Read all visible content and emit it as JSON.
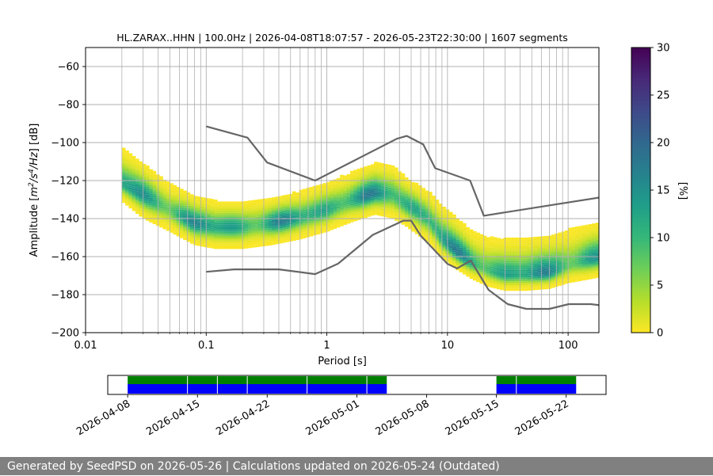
{
  "chart_data": [
    {
      "type": "heatmap",
      "title": "HL.ZARAX..HHN | 100.0Hz | 2026-04-08T18:07:57 - 2026-05-23T22:30:00 | 1607 segments",
      "xlabel": "Period [s]",
      "ylabel_parts": [
        "Amplitude [",
        "m",
        "2",
        "/",
        "s",
        "4",
        "/",
        "Hz",
        "] [dB]"
      ],
      "x_scale": "log",
      "xlim": [
        0.01,
        180
      ],
      "ylim": [
        -200,
        -50
      ],
      "xticks": [
        0.01,
        0.1,
        1,
        10,
        100
      ],
      "xtick_labels": [
        "0.01",
        "0.1",
        "1",
        "10",
        "100"
      ],
      "yticks": [
        -200,
        -180,
        -160,
        -140,
        -120,
        -100,
        -80,
        -60
      ],
      "ytick_labels": [
        "−200",
        "−180",
        "−160",
        "−140",
        "−120",
        "−100",
        "−80",
        "−60"
      ],
      "grid": true,
      "colorbar": {
        "label": "[%]",
        "range": [
          0,
          30
        ],
        "ticks": [
          0,
          5,
          10,
          15,
          20,
          25,
          30
        ],
        "colormap": "viridis_r",
        "colors": [
          "#fde725",
          "#b5de2b",
          "#6ece58",
          "#35b779",
          "#1f9e89",
          "#26828e",
          "#31688e",
          "#3e4989",
          "#482878",
          "#440154"
        ]
      },
      "psd_mode": {
        "period": [
          0.02,
          0.03,
          0.05,
          0.08,
          0.12,
          0.2,
          0.35,
          0.6,
          1,
          1.6,
          2.5,
          3.5,
          4.5,
          5.5,
          7,
          9,
          12,
          16,
          22,
          30,
          45,
          70,
          100,
          150,
          180
        ],
        "db": [
          -122,
          -128,
          -136,
          -143,
          -145,
          -145,
          -143,
          -140,
          -136,
          -131,
          -127,
          -128,
          -133,
          -136,
          -141,
          -151,
          -158,
          -164,
          -168,
          -170,
          -170,
          -169,
          -165,
          -162,
          -161
        ]
      },
      "psd_spread_db": {
        "upper": [
          -103,
          -111,
          -122,
          -128,
          -131,
          -131,
          -129,
          -126,
          -121,
          -116,
          -111,
          -112,
          -118,
          -122,
          -126,
          -133,
          -140,
          -147,
          -150,
          -151,
          -150,
          -149,
          -146,
          -143,
          -142
        ],
        "lower": [
          -131,
          -140,
          -147,
          -154,
          -156,
          -156,
          -154,
          -151,
          -147,
          -142,
          -138,
          -140,
          -144,
          -148,
          -153,
          -161,
          -167,
          -172,
          -176,
          -178,
          -178,
          -177,
          -174,
          -172,
          -171
        ]
      },
      "high_noise_model": {
        "period": [
          0.1,
          0.22,
          0.32,
          0.8,
          3.8,
          4.6,
          6.3,
          7.9,
          15.4,
          20,
          354.8
        ],
        "db": [
          -91.5,
          -97.4,
          -110.5,
          -120,
          -98,
          -96.5,
          -101,
          -113.5,
          -120,
          -138.5,
          -126
        ]
      },
      "low_noise_model": {
        "period": [
          0.1,
          0.17,
          0.4,
          0.8,
          1.24,
          2.4,
          4.3,
          5,
          6,
          10,
          12,
          15.6,
          21.9,
          31.6,
          45,
          70,
          101,
          154,
          328
        ],
        "db": [
          -168,
          -166.7,
          -166.7,
          -169.2,
          -163.7,
          -148.6,
          -141.1,
          -141.1,
          -149,
          -163.8,
          -166.2,
          -162.1,
          -177.5,
          -185,
          -187.5,
          -187.5,
          -185,
          -185,
          -187.5
        ]
      },
      "line_color": "#666666"
    },
    {
      "type": "timeline",
      "ticks": [
        "2026-04-08",
        "2026-04-15",
        "2026-04-22",
        "2026-05-01",
        "2026-05-08",
        "2026-05-15",
        "2026-05-22"
      ],
      "xlim": [
        "2026-04-06",
        "2026-05-26"
      ],
      "coverage_segments": [
        [
          "2026-04-08",
          "2026-05-04"
        ],
        [
          "2026-05-15",
          "2026-05-23"
        ]
      ],
      "segment_dividers": [
        "2026-04-14",
        "2026-04-17",
        "2026-04-20",
        "2026-04-26",
        "2026-05-02",
        "2026-05-17"
      ],
      "colors": {
        "top": "#008000",
        "bottom": "#0000ff"
      }
    }
  ],
  "footer": {
    "text": "Generated by SeedPSD on 2026-05-26 | Calculations updated on 2026-05-24 (Outdated)"
  }
}
